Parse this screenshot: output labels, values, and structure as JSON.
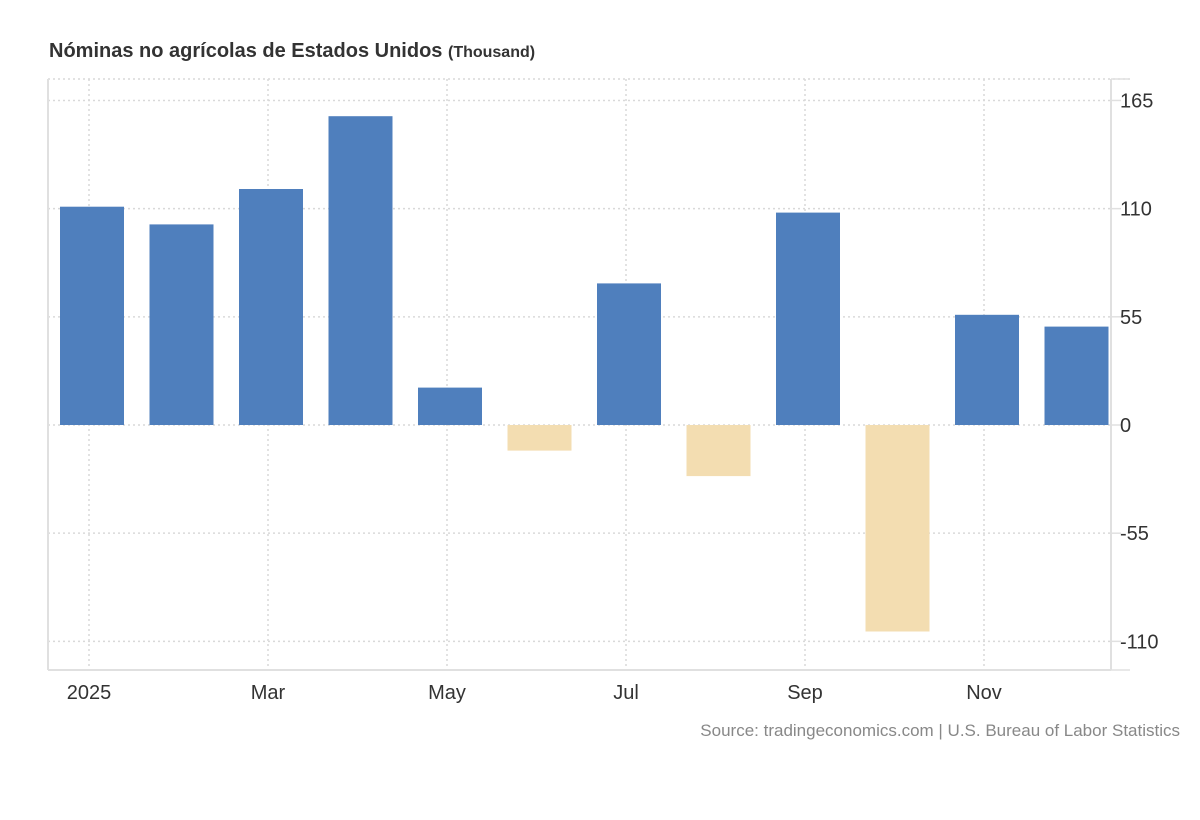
{
  "title": "Nóminas no agrícolas de Estados Unidos",
  "unit": "(Thousand)",
  "source": "Source: tradingeconomics.com | U.S. Bureau of Labor Statistics",
  "colors": {
    "positive": "#4f7fbd",
    "negative": "#f3ddb1",
    "grid": "#d9d9d9",
    "axis": "#e0e0e0",
    "text": "#333333"
  },
  "chart_data": {
    "type": "bar",
    "title": "Nóminas no agrícolas de Estados Unidos (Thousand)",
    "xlabel": "",
    "ylabel": "Thousand",
    "categories": [
      "Jan 2025",
      "Feb 2025",
      "Mar 2025",
      "Apr 2025",
      "May 2025",
      "Jun 2025",
      "Jul 2025",
      "Aug 2025",
      "Sep 2025",
      "Oct 2025",
      "Nov 2025",
      "Dec 2025"
    ],
    "values": [
      111,
      102,
      120,
      157,
      19,
      -13,
      72,
      -26,
      108,
      -105,
      56,
      50
    ],
    "ylim": [
      -125,
      170
    ],
    "yticks": [
      165,
      110,
      55,
      0,
      -55,
      -110
    ],
    "ytick_labels": [
      "165",
      "110",
      "55",
      "0",
      "-55",
      "-110"
    ],
    "xtick_labels": [
      {
        "index": 0,
        "label": "2025"
      },
      {
        "index": 2,
        "label": "Mar"
      },
      {
        "index": 4,
        "label": "May"
      },
      {
        "index": 6,
        "label": "Jul"
      },
      {
        "index": 8,
        "label": "Sep"
      },
      {
        "index": 10,
        "label": "Nov"
      }
    ],
    "y_axis_side": "right",
    "grid": true,
    "legend": "none"
  }
}
